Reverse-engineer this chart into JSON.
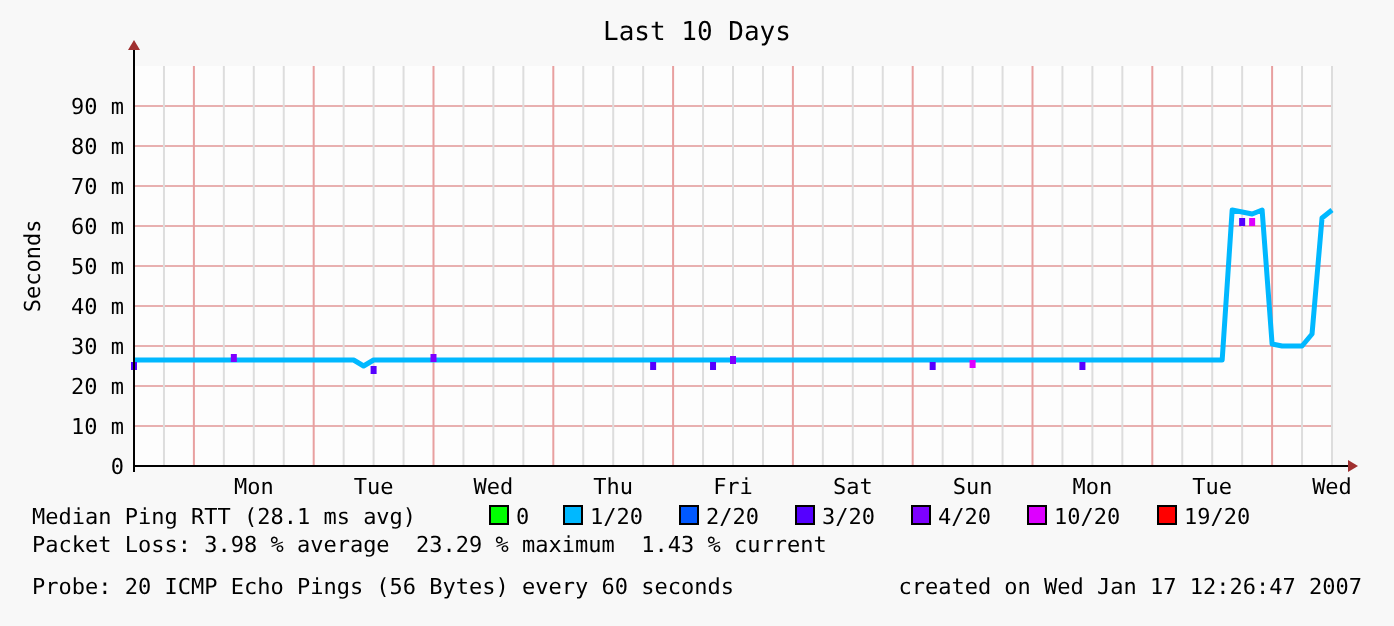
{
  "chart_data": {
    "type": "line",
    "title": "Last 10 Days",
    "ylabel": "Seconds",
    "categories": [
      null,
      null,
      null,
      null,
      null,
      null,
      null,
      null,
      null,
      null,
      null,
      null,
      "Mon",
      null,
      null,
      null,
      null,
      null,
      null,
      null,
      null,
      null,
      null,
      null,
      "Tue",
      null,
      null,
      null,
      null,
      null,
      null,
      null,
      null,
      null,
      null,
      null,
      "Wed",
      null,
      null,
      null,
      null,
      null,
      null,
      null,
      null,
      null,
      null,
      null,
      "Thu",
      null,
      null,
      null,
      null,
      null,
      null,
      null,
      null,
      null,
      null,
      null,
      "Fri",
      null,
      null,
      null,
      null,
      null,
      null,
      null,
      null,
      null,
      null,
      null,
      "Sat",
      null,
      null,
      null,
      null,
      null,
      null,
      null,
      null,
      null,
      null,
      null,
      "Sun",
      null,
      null,
      null,
      null,
      null,
      null,
      null,
      null,
      null,
      null,
      null,
      "Mon",
      null,
      null,
      null,
      null,
      null,
      null,
      null,
      null,
      null,
      null,
      null,
      "Tue",
      null,
      null,
      null,
      null,
      null,
      null,
      null,
      null,
      null,
      null,
      null,
      "Wed"
    ],
    "ylim": [
      0,
      100
    ],
    "yticks": [
      0,
      {
        "value": 10,
        "label": "10 m"
      },
      {
        "value": 20,
        "label": "20 m"
      },
      {
        "value": 30,
        "label": "30 m"
      },
      {
        "value": 40,
        "label": "40 m"
      },
      {
        "value": 50,
        "label": "50 m"
      },
      {
        "value": 60,
        "label": "60 m"
      },
      {
        "value": 70,
        "label": "70 m"
      },
      {
        "value": 80,
        "label": "80 m"
      },
      {
        "value": 90,
        "label": "90 m"
      }
    ],
    "grid": true,
    "legend": "bottom",
    "series": [
      {
        "name": "0",
        "color": "#00ff00",
        "type": "scatter",
        "values": [
          null,
          null,
          null,
          null,
          null,
          null,
          null,
          null,
          null,
          null,
          null,
          null,
          null,
          null,
          null,
          null,
          null,
          null,
          null,
          null,
          null,
          null,
          null,
          null,
          null,
          null,
          null,
          null,
          null,
          null,
          null,
          null,
          null,
          null,
          null,
          null,
          null,
          null,
          null,
          null,
          null,
          null,
          null,
          null,
          null,
          null,
          null,
          null,
          null,
          null,
          null,
          null,
          null,
          null,
          null,
          null,
          null,
          null,
          null,
          null,
          null,
          null,
          null,
          null,
          null,
          null,
          null,
          null,
          null,
          null,
          null,
          null,
          null,
          null,
          null,
          null,
          null,
          null,
          null,
          null,
          null,
          null,
          null,
          null,
          null,
          null,
          null,
          null,
          null,
          null,
          null,
          null,
          null,
          null,
          null,
          null,
          null,
          null,
          null,
          null,
          null,
          null,
          null,
          null,
          null,
          null,
          null,
          null,
          null,
          null,
          null,
          null,
          null,
          null,
          null,
          null,
          null,
          null,
          null,
          null,
          null
        ]
      },
      {
        "name": "1/20",
        "color": "#00b8ff",
        "values": [
          26.5,
          26.5,
          26.5,
          26.5,
          26.5,
          26.5,
          26.5,
          26.5,
          26.5,
          26.5,
          26.5,
          26.5,
          26.5,
          26.5,
          26.5,
          26.5,
          26.5,
          26.5,
          26.5,
          26.5,
          26.5,
          26.5,
          26.5,
          25,
          26.5,
          26.5,
          26.5,
          26.5,
          26.5,
          26.5,
          26.5,
          26.5,
          26.5,
          26.5,
          26.5,
          26.5,
          26.5,
          26.5,
          26.5,
          26.5,
          26.5,
          26.5,
          26.5,
          26.5,
          26.5,
          26.5,
          26.5,
          26.5,
          26.5,
          26.5,
          26.5,
          26.5,
          26.5,
          26.5,
          26.5,
          26.5,
          26.5,
          26.5,
          26.5,
          26.5,
          26.5,
          26.5,
          26.5,
          26.5,
          26.5,
          26.5,
          26.5,
          26.5,
          26.5,
          26.5,
          26.5,
          26.5,
          26.5,
          26.5,
          26.5,
          26.5,
          26.5,
          26.5,
          26.5,
          26.5,
          26.5,
          26.5,
          26.5,
          26.5,
          26.5,
          26.5,
          26.5,
          26.5,
          26.5,
          26.5,
          26.5,
          26.5,
          26.5,
          26.5,
          26.5,
          26.5,
          26.5,
          26.5,
          26.5,
          26.5,
          26.5,
          26.5,
          26.5,
          26.5,
          26.5,
          26.5,
          26.5,
          26.5,
          26.5,
          26.5,
          64,
          63.5,
          63,
          64,
          30.5,
          30,
          30,
          30,
          33,
          62,
          64
        ]
      },
      {
        "name": "2/20",
        "color": "#0059ff",
        "type": "scatter",
        "values": [
          null,
          null,
          null,
          null,
          null,
          null,
          null,
          null,
          null,
          null,
          null,
          null,
          null,
          null,
          null,
          null,
          null,
          null,
          null,
          null,
          null,
          null,
          null,
          null,
          null,
          null,
          null,
          null,
          null,
          null,
          null,
          null,
          null,
          null,
          null,
          null,
          null,
          null,
          null,
          null,
          null,
          null,
          null,
          null,
          null,
          null,
          null,
          null,
          null,
          null,
          null,
          null,
          null,
          null,
          null,
          null,
          null,
          null,
          null,
          null,
          null,
          null,
          null,
          null,
          null,
          null,
          null,
          null,
          null,
          null,
          null,
          null,
          null,
          null,
          null,
          null,
          null,
          null,
          null,
          null,
          null,
          null,
          null,
          null,
          null,
          null,
          null,
          null,
          null,
          null,
          null,
          null,
          null,
          null,
          null,
          null,
          null,
          null,
          null,
          null,
          null,
          null,
          null,
          null,
          null,
          null,
          null,
          null,
          null,
          null,
          null,
          null,
          null,
          null,
          null,
          null,
          null,
          null,
          null,
          null,
          null
        ]
      },
      {
        "name": "3/20",
        "color": "#5500ff",
        "type": "scatter",
        "values": [
          25,
          null,
          null,
          null,
          null,
          null,
          null,
          null,
          null,
          null,
          null,
          null,
          null,
          null,
          null,
          null,
          null,
          null,
          null,
          null,
          null,
          null,
          null,
          null,
          24,
          null,
          null,
          null,
          null,
          null,
          null,
          null,
          null,
          null,
          null,
          null,
          null,
          null,
          null,
          null,
          null,
          null,
          null,
          null,
          null,
          null,
          null,
          null,
          null,
          null,
          null,
          null,
          25,
          null,
          null,
          null,
          null,
          null,
          25,
          null,
          null,
          null,
          null,
          null,
          null,
          null,
          null,
          null,
          null,
          null,
          null,
          null,
          null,
          null,
          null,
          null,
          null,
          null,
          null,
          null,
          25,
          null,
          null,
          null,
          null,
          null,
          null,
          null,
          null,
          null,
          null,
          null,
          null,
          null,
          null,
          25,
          null,
          null,
          null,
          null,
          null,
          null,
          null,
          null,
          null,
          null,
          null,
          null,
          null,
          null,
          null,
          61,
          null,
          null,
          null,
          null,
          null,
          null,
          null,
          null,
          null
        ]
      },
      {
        "name": "4/20",
        "color": "#7e00ff",
        "type": "scatter",
        "values": [
          null,
          null,
          null,
          null,
          null,
          null,
          null,
          null,
          null,
          null,
          27,
          null,
          null,
          null,
          null,
          null,
          null,
          null,
          null,
          null,
          null,
          null,
          null,
          null,
          null,
          null,
          null,
          null,
          null,
          null,
          27,
          null,
          null,
          null,
          null,
          null,
          null,
          null,
          null,
          null,
          null,
          null,
          null,
          null,
          null,
          null,
          null,
          null,
          null,
          null,
          null,
          null,
          null,
          null,
          null,
          null,
          null,
          null,
          null,
          null,
          26.5,
          null,
          null,
          null,
          null,
          null,
          null,
          null,
          null,
          null,
          null,
          null,
          null,
          null,
          null,
          null,
          null,
          null,
          null,
          null,
          null,
          null,
          null,
          null,
          null,
          null,
          null,
          null,
          null,
          null,
          null,
          null,
          null,
          null,
          null,
          null,
          null,
          null,
          null,
          null,
          null,
          null,
          null,
          null,
          null,
          null,
          null,
          null,
          null,
          null,
          null,
          null,
          null,
          null,
          null,
          null,
          null,
          null,
          null,
          null,
          null
        ]
      },
      {
        "name": "10/20",
        "color": "#dd00ff",
        "type": "scatter",
        "values": [
          null,
          null,
          null,
          null,
          null,
          null,
          null,
          null,
          null,
          null,
          null,
          null,
          null,
          null,
          null,
          null,
          null,
          null,
          null,
          null,
          null,
          null,
          null,
          null,
          null,
          null,
          null,
          null,
          null,
          null,
          null,
          null,
          null,
          null,
          null,
          null,
          null,
          null,
          null,
          null,
          null,
          null,
          null,
          null,
          null,
          null,
          null,
          null,
          null,
          null,
          null,
          null,
          null,
          null,
          null,
          null,
          null,
          null,
          null,
          null,
          null,
          null,
          null,
          null,
          null,
          null,
          null,
          null,
          null,
          null,
          null,
          null,
          null,
          null,
          null,
          null,
          null,
          null,
          null,
          null,
          null,
          null,
          null,
          null,
          25.5,
          null,
          null,
          null,
          null,
          null,
          null,
          null,
          null,
          null,
          null,
          null,
          null,
          null,
          null,
          null,
          null,
          null,
          null,
          null,
          null,
          null,
          null,
          null,
          null,
          null,
          null,
          null,
          61,
          null,
          null,
          null,
          null,
          null,
          null,
          null,
          null
        ]
      },
      {
        "name": "19/20",
        "color": "#ff0000",
        "type": "scatter",
        "values": [
          null,
          null,
          null,
          null,
          null,
          null,
          null,
          null,
          null,
          null,
          null,
          null,
          null,
          null,
          null,
          null,
          null,
          null,
          null,
          null,
          null,
          null,
          null,
          null,
          null,
          null,
          null,
          null,
          null,
          null,
          null,
          null,
          null,
          null,
          null,
          null,
          null,
          null,
          null,
          null,
          null,
          null,
          null,
          null,
          null,
          null,
          null,
          null,
          null,
          null,
          null,
          null,
          null,
          null,
          null,
          null,
          null,
          null,
          null,
          null,
          null,
          null,
          null,
          null,
          null,
          null,
          null,
          null,
          null,
          null,
          null,
          null,
          null,
          null,
          null,
          null,
          null,
          null,
          null,
          null,
          null,
          null,
          null,
          null,
          null,
          null,
          null,
          null,
          null,
          null,
          null,
          null,
          null,
          null,
          null,
          null,
          null,
          null,
          null,
          null,
          null,
          null,
          null,
          null,
          null,
          null,
          null,
          null,
          null,
          null,
          null,
          null,
          null,
          null,
          null,
          null,
          null,
          null,
          null,
          null,
          null
        ]
      }
    ],
    "annotations": [
      "Median Ping RTT (28.1 ms avg)",
      "Packet Loss: 3.98 % average  23.29 % maximum  1.43 % current",
      "Probe: 20 ICMP Echo Pings (56 Bytes) every 60 seconds",
      "created on Wed Jan 17 12:26:47 2007"
    ]
  }
}
